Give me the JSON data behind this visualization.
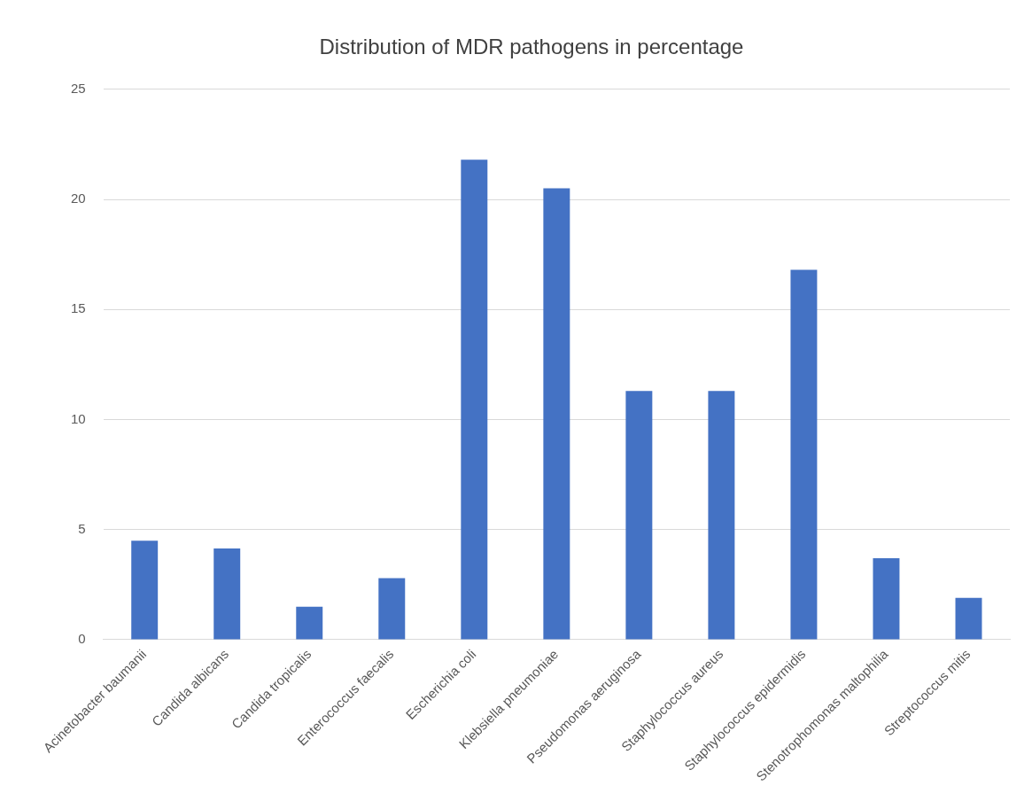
{
  "chart_data": {
    "type": "bar",
    "title": "Distribution of MDR pathogens in percentage",
    "categories": [
      "Acinetobacter baumanii",
      "Candida albicans",
      "Candida tropicalis",
      "Enterococcus faecalis",
      "Escherichia coli",
      "Klebsiella pneumoniae",
      "Pseudomonas aeruginosa",
      "Staphylococcus aureus",
      "Staphylococcus epidermidis",
      "Stenotrophomonas maltophilia",
      "Streptococcus mitis"
    ],
    "values": [
      4.5,
      4.15,
      1.5,
      2.8,
      21.8,
      20.5,
      11.3,
      11.3,
      16.8,
      3.7,
      1.9
    ],
    "color": "#4472c4",
    "ylim": [
      0,
      25
    ],
    "yticks": [
      0,
      5,
      10,
      15,
      20,
      25
    ],
    "grid": "y"
  }
}
